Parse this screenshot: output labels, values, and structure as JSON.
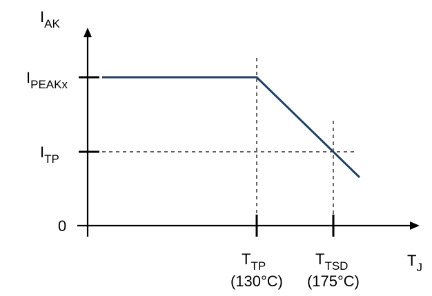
{
  "chart_data": {
    "type": "line",
    "title": "",
    "ylabel": {
      "main": "I",
      "sub": "AK"
    },
    "xlabel": {
      "main": "T",
      "sub": "J"
    },
    "y_ticks": [
      {
        "key": "ipeak",
        "main": "I",
        "sub": "PEAKx"
      },
      {
        "key": "itp",
        "main": "I",
        "sub": "TP"
      },
      {
        "key": "zero",
        "main": "0",
        "sub": ""
      }
    ],
    "x_ticks": [
      {
        "key": "ttp",
        "main": "T",
        "sub": "TP",
        "note": "(130°C)",
        "value_c": 130
      },
      {
        "key": "ttsd",
        "main": "T",
        "sub": "TSD",
        "note": "(175°C)",
        "value_c": 175
      }
    ],
    "series": [
      {
        "points": [
          {
            "x": "start",
            "y": "I_PEAKx"
          },
          {
            "x": "T_TP (130°C)",
            "y": "I_PEAKx"
          },
          {
            "x": "T_TSD (175°C)",
            "y": "I_TP"
          },
          {
            "x": "end",
            "y": "below I_TP"
          }
        ]
      }
    ],
    "grid": false,
    "colors": {
      "line": "#1f3f63",
      "axis": "#000000"
    }
  }
}
